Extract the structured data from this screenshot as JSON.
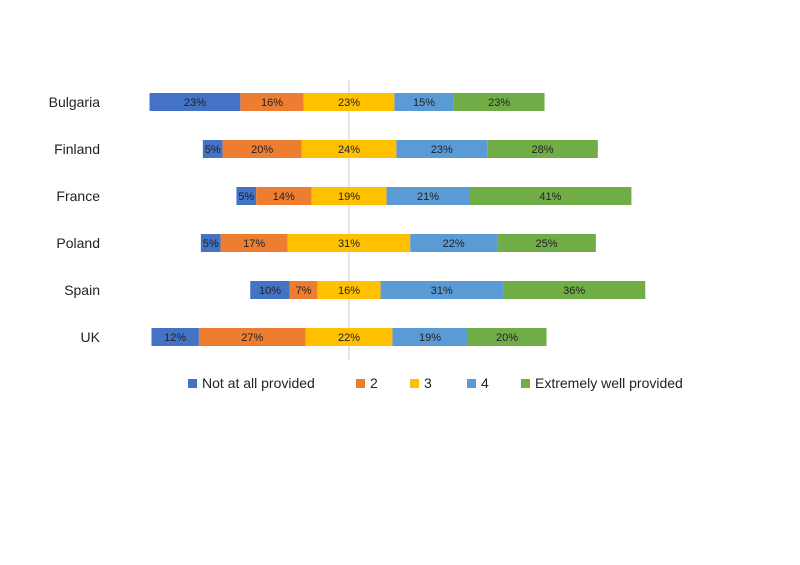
{
  "chart_data": {
    "type": "bar",
    "orientation": "horizontal",
    "stacked": "diverging",
    "title": "",
    "xlabel": "",
    "ylabel": "",
    "categories": [
      "Bulgaria",
      "Finland",
      "France",
      "Poland",
      "Spain",
      "UK"
    ],
    "series": [
      {
        "name": "Not at all provided",
        "color": "#4472C4",
        "values": [
          23,
          5,
          5,
          5,
          10,
          12
        ]
      },
      {
        "name": "2",
        "color": "#ED7D31",
        "values": [
          16,
          20,
          14,
          17,
          7,
          27
        ]
      },
      {
        "name": "3",
        "color": "#FFC000",
        "values": [
          23,
          24,
          19,
          31,
          16,
          22
        ]
      },
      {
        "name": "4",
        "color": "#5B9BD5",
        "values": [
          15,
          23,
          21,
          22,
          31,
          19
        ]
      },
      {
        "name": "Extremely well provided",
        "color": "#70AD47",
        "values": [
          23,
          28,
          41,
          25,
          36,
          20
        ]
      }
    ],
    "value_suffix": "%",
    "grid": false,
    "legend_position": "bottom",
    "center_line": true
  }
}
